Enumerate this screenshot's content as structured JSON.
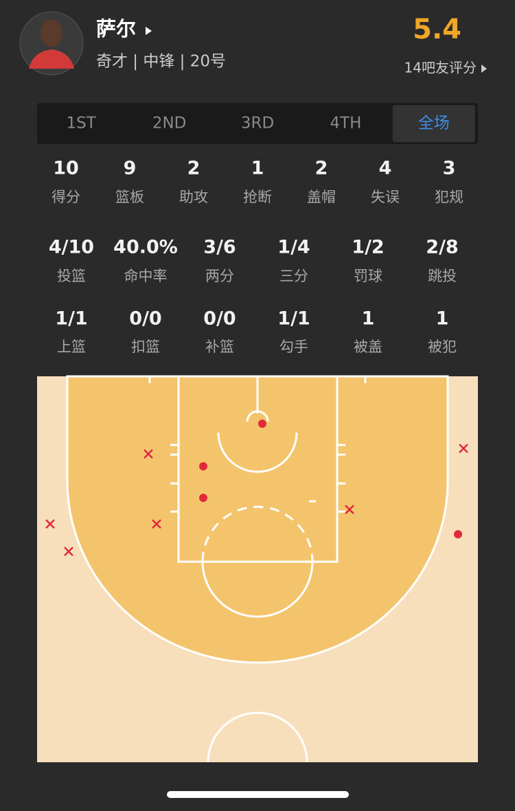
{
  "header": {
    "name": "萨尔",
    "info": "奇才 | 中锋 | 20号",
    "rating": "5.4",
    "rating_count": "14吧友评分"
  },
  "tabs": {
    "items": [
      "1ST",
      "2ND",
      "3RD",
      "4TH",
      "全场"
    ],
    "active": 4
  },
  "stats": [
    [
      {
        "value": "10",
        "label": "得分"
      },
      {
        "value": "9",
        "label": "篮板"
      },
      {
        "value": "2",
        "label": "助攻"
      },
      {
        "value": "1",
        "label": "抢断"
      },
      {
        "value": "2",
        "label": "盖帽"
      },
      {
        "value": "4",
        "label": "失误"
      },
      {
        "value": "3",
        "label": "犯规"
      }
    ],
    [
      {
        "value": "4/10",
        "label": "投篮"
      },
      {
        "value": "40.0%",
        "label": "命中率"
      },
      {
        "value": "3/6",
        "label": "两分"
      },
      {
        "value": "1/4",
        "label": "三分"
      },
      {
        "value": "1/2",
        "label": "罚球"
      },
      {
        "value": "2/8",
        "label": "跳投"
      }
    ],
    [
      {
        "value": "1/1",
        "label": "上篮"
      },
      {
        "value": "0/0",
        "label": "扣篮"
      },
      {
        "value": "0/0",
        "label": "补篮"
      },
      {
        "value": "1/1",
        "label": "勾手"
      },
      {
        "value": "1",
        "label": "被盖"
      },
      {
        "value": "1",
        "label": "被犯"
      }
    ]
  ]
}
